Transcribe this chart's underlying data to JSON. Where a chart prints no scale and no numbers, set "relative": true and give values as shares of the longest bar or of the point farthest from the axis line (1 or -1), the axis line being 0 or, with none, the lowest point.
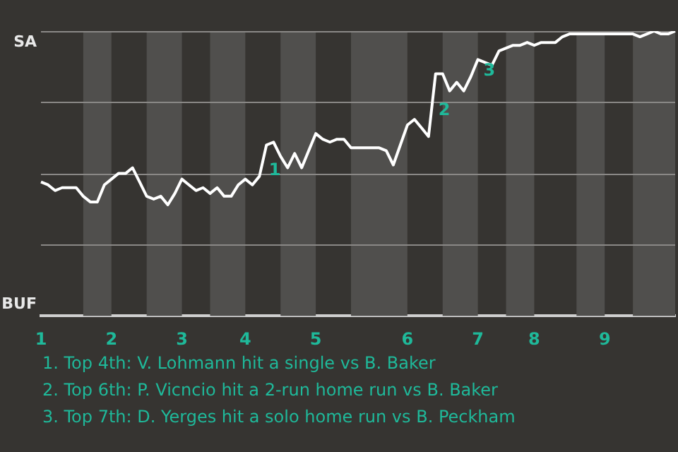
{
  "chart_data": {
    "type": "line",
    "categories": [
      "1",
      null,
      null,
      null,
      null,
      null,
      null,
      null,
      null,
      null,
      "2",
      null,
      null,
      null,
      null,
      null,
      null,
      null,
      null,
      null,
      "3",
      null,
      null,
      null,
      null,
      null,
      null,
      null,
      null,
      "4",
      null,
      null,
      null,
      null,
      null,
      null,
      null,
      null,
      null,
      "5",
      null,
      null,
      null,
      null,
      null,
      null,
      null,
      null,
      null,
      null,
      null,
      null,
      "6",
      null,
      null,
      null,
      null,
      null,
      null,
      null,
      null,
      null,
      "7",
      null,
      null,
      null,
      null,
      null,
      null,
      null,
      "8",
      null,
      null,
      null,
      null,
      null,
      null,
      null,
      null,
      null,
      "9",
      null,
      null,
      null,
      null,
      null,
      null,
      null,
      null,
      null,
      null
    ],
    "series": [
      {
        "color": "#ffffff",
        "values": [
          0.47,
          0.46,
          0.44,
          0.45,
          0.45,
          0.45,
          0.42,
          0.4,
          0.4,
          0.46,
          0.48,
          0.5,
          0.5,
          0.52,
          0.47,
          0.42,
          0.41,
          0.42,
          0.39,
          0.43,
          0.48,
          0.46,
          0.44,
          0.45,
          0.43,
          0.45,
          0.42,
          0.42,
          0.46,
          0.48,
          0.46,
          0.49,
          0.6,
          0.61,
          0.56,
          0.52,
          0.57,
          0.52,
          0.58,
          0.64,
          0.62,
          0.61,
          0.62,
          0.62,
          0.59,
          0.59,
          0.59,
          0.59,
          0.59,
          0.58,
          0.53,
          0.6,
          0.67,
          0.69,
          0.66,
          0.63,
          0.85,
          0.85,
          0.79,
          0.82,
          0.79,
          0.84,
          0.9,
          0.89,
          0.88,
          0.93,
          0.94,
          0.95,
          0.95,
          0.96,
          0.95,
          0.96,
          0.96,
          0.96,
          0.98,
          0.99,
          0.99,
          0.99,
          0.99,
          0.99,
          0.99,
          0.99,
          0.99,
          0.99,
          0.99,
          0.98,
          0.99,
          1.0,
          0.99,
          0.99,
          1.0
        ]
      }
    ],
    "relative": true,
    "marker": "none",
    "ref_lines": [
      {
        "axis": "y",
        "value": 0.25,
        "color": "#8a8886"
      },
      {
        "axis": "y",
        "value": 0.5,
        "color": "#8a8886"
      },
      {
        "axis": "y",
        "value": 0.75,
        "color": "#8a8886"
      },
      {
        "axis": "y",
        "value": 1,
        "color": "#8a8886"
      }
    ],
    "annotations": [
      {
        "text": "1",
        "y": 0.55
      },
      {
        "text": "2",
        "y": 0.76
      },
      {
        "text": "3",
        "y": 0.9
      },
      "SA",
      "BUF",
      "1. Top 4th: V. Lohmann hit a single vs B. Baker",
      "2. Top 6th: P. Vicncio hit a 2-run home run vs B. Baker",
      "3. Top 7th: D. Yerges hit a solo home run vs B. Peckham"
    ]
  }
}
